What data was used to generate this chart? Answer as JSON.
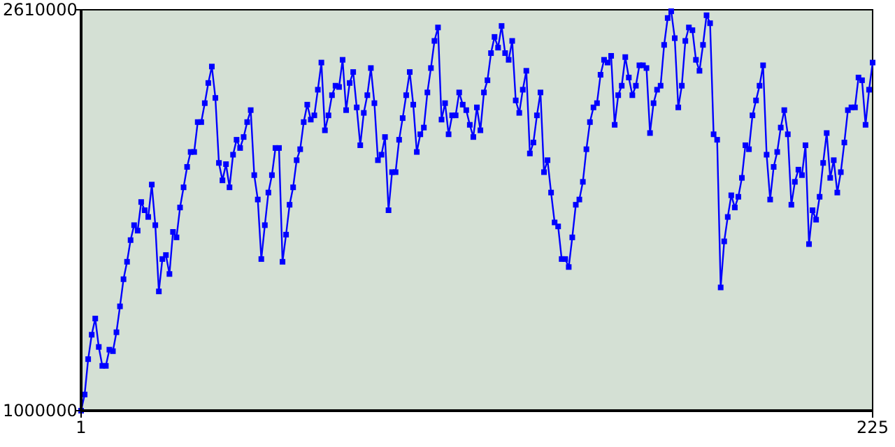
{
  "chart_data": {
    "type": "line",
    "x": [
      1,
      2,
      3,
      4,
      5,
      6,
      7,
      8,
      9,
      10,
      11,
      12,
      13,
      14,
      15,
      16,
      17,
      18,
      19,
      20,
      21,
      22,
      23,
      24,
      25,
      26,
      27,
      28,
      29,
      30,
      31,
      32,
      33,
      34,
      35,
      36,
      37,
      38,
      39,
      40,
      41,
      42,
      43,
      44,
      45,
      46,
      47,
      48,
      49,
      50,
      51,
      52,
      53,
      54,
      55,
      56,
      57,
      58,
      59,
      60,
      61,
      62,
      63,
      64,
      65,
      66,
      67,
      68,
      69,
      70,
      71,
      72,
      73,
      74,
      75,
      76,
      77,
      78,
      79,
      80,
      81,
      82,
      83,
      84,
      85,
      86,
      87,
      88,
      89,
      90,
      91,
      92,
      93,
      94,
      95,
      96,
      97,
      98,
      99,
      100,
      101,
      102,
      103,
      104,
      105,
      106,
      107,
      108,
      109,
      110,
      111,
      112,
      113,
      114,
      115,
      116,
      117,
      118,
      119,
      120,
      121,
      122,
      123,
      124,
      125,
      126,
      127,
      128,
      129,
      130,
      131,
      132,
      133,
      134,
      135,
      136,
      137,
      138,
      139,
      140,
      141,
      142,
      143,
      144,
      145,
      146,
      147,
      148,
      149,
      150,
      151,
      152,
      153,
      154,
      155,
      156,
      157,
      158,
      159,
      160,
      161,
      162,
      163,
      164,
      165,
      166,
      167,
      168,
      169,
      170,
      171,
      172,
      173,
      174,
      175,
      176,
      177,
      178,
      179,
      180,
      181,
      182,
      183,
      184,
      185,
      186,
      187,
      188,
      189,
      190,
      191,
      192,
      193,
      194,
      195,
      196,
      197,
      198,
      199,
      200,
      201,
      202,
      203,
      204,
      205,
      206,
      207,
      208,
      209,
      210,
      211,
      212,
      213,
      214,
      215,
      216,
      217,
      218,
      219,
      220,
      221,
      222,
      223,
      224,
      225
    ],
    "series": [
      {
        "color": "#0000ff",
        "values": [
          1000000,
          1065000,
          1207000,
          1305000,
          1370000,
          1256000,
          1180000,
          1180000,
          1245000,
          1239000,
          1315000,
          1419000,
          1528000,
          1598000,
          1685000,
          1745000,
          1723000,
          1838000,
          1805000,
          1778000,
          1908000,
          1745000,
          1479000,
          1609000,
          1625000,
          1549000,
          1718000,
          1696000,
          1816000,
          1897000,
          1979000,
          2039000,
          2039000,
          2159000,
          2159000,
          2235000,
          2316000,
          2382000,
          2256000,
          1995000,
          1925000,
          1990000,
          1897000,
          2028000,
          2088000,
          2055000,
          2099000,
          2159000,
          2207000,
          1946000,
          1848000,
          1609000,
          1745000,
          1876000,
          1946000,
          2055000,
          2055000,
          1598000,
          1707000,
          1827000,
          1897000,
          2006000,
          2050000,
          2159000,
          2229000,
          2169000,
          2186000,
          2289000,
          2398000,
          2126000,
          2186000,
          2267000,
          2305000,
          2300000,
          2409000,
          2207000,
          2316000,
          2360000,
          2218000,
          2066000,
          2196000,
          2267000,
          2376000,
          2235000,
          2006000,
          2028000,
          2099000,
          1805000,
          1958000,
          1958000,
          2088000,
          2175000,
          2267000,
          2360000,
          2229000,
          2039000,
          2110000,
          2137000,
          2278000,
          2376000,
          2485000,
          2539000,
          2169000,
          2235000,
          2110000,
          2186000,
          2186000,
          2278000,
          2229000,
          2207000,
          2148000,
          2099000,
          2218000,
          2126000,
          2278000,
          2327000,
          2436000,
          2501000,
          2458000,
          2545000,
          2436000,
          2409000,
          2485000,
          2246000,
          2196000,
          2289000,
          2365000,
          2033000,
          2077000,
          2186000,
          2278000,
          1958000,
          2006000,
          1876000,
          1756000,
          1740000,
          1609000,
          1609000,
          1577000,
          1696000,
          1827000,
          1848000,
          1919000,
          2050000,
          2159000,
          2218000,
          2235000,
          2349000,
          2409000,
          2398000,
          2425000,
          2148000,
          2267000,
          2305000,
          2420000,
          2338000,
          2267000,
          2305000,
          2387000,
          2387000,
          2376000,
          2115000,
          2235000,
          2289000,
          2305000,
          2469000,
          2577000,
          2604000,
          2496000,
          2218000,
          2305000,
          2485000,
          2539000,
          2528000,
          2409000,
          2365000,
          2469000,
          2588000,
          2556000,
          2110000,
          2088000,
          1495000,
          1680000,
          1778000,
          1865000,
          1816000,
          1859000,
          1935000,
          2066000,
          2050000,
          2186000,
          2246000,
          2305000,
          2387000,
          2028000,
          1848000,
          1979000,
          2039000,
          2137000,
          2207000,
          2110000,
          1827000,
          1919000,
          1968000,
          1946000,
          2066000,
          1669000,
          1805000,
          1767000,
          1859000,
          1995000,
          2115000,
          1935000,
          2006000,
          1876000,
          1958000,
          2077000,
          2207000,
          2218000,
          2218000,
          2338000,
          2327000,
          2148000,
          2289000,
          2398000
        ]
      }
    ],
    "xlim": [
      1,
      225
    ],
    "xticks": [
      1,
      225
    ],
    "ylim": [
      1000000,
      2610000
    ],
    "yticks": [
      1000000,
      2610000
    ],
    "grid": false,
    "marker": "square",
    "line_style": "solid"
  }
}
